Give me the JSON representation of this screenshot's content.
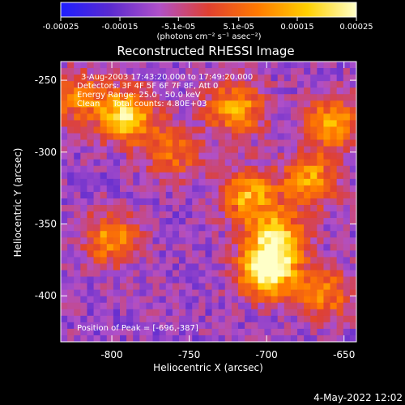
{
  "colorbar": {
    "min": -0.00025,
    "max": 0.00025,
    "ticks": [
      "-0.00025",
      "-0.00015",
      "-5.1e-05",
      "5.1e-05",
      "0.00015",
      "0.00025"
    ],
    "unit_label": "(photons cm⁻² s⁻¹ asec⁻²)",
    "colors": [
      "#1e1eff",
      "#5a2ad0",
      "#b050c8",
      "#e04030",
      "#ff7a00",
      "#ffd000",
      "#ffffc8"
    ]
  },
  "chart_data": {
    "type": "heatmap",
    "title": "Reconstructed RHESSI Image",
    "xlabel": "Heliocentric X (arcsec)",
    "ylabel": "Heliocentric Y (arcsec)",
    "xlim": [
      -833,
      -642
    ],
    "ylim": [
      -432,
      -237
    ],
    "xticks": [
      -800,
      -750,
      -700,
      -650
    ],
    "yticks": [
      -250,
      -300,
      -350,
      -400
    ],
    "info_lines": [
      "3-Aug-2003 17:43:20.000 to 17:49:20.000",
      "Detectors: 3F 4F 5F 6F 7F 8F, Att 0",
      "Energy Range: 25.0 - 50.0 keV",
      "Clean     Total counts: 4.80E+03"
    ],
    "peak_label": "Position of Peak = [-696,-387]",
    "peak_position": [
      -696,
      -387
    ],
    "hotspots": [
      {
        "x": -700,
        "y": -383,
        "strength": 1.0
      },
      {
        "x": -693,
        "y": -360,
        "strength": 0.75
      },
      {
        "x": -712,
        "y": -330,
        "strength": 0.65
      },
      {
        "x": -720,
        "y": -270,
        "strength": 0.65
      },
      {
        "x": -790,
        "y": -275,
        "strength": 0.8
      },
      {
        "x": -822,
        "y": -262,
        "strength": 0.5
      },
      {
        "x": -800,
        "y": -360,
        "strength": 0.55
      },
      {
        "x": -658,
        "y": -280,
        "strength": 0.6
      },
      {
        "x": -672,
        "y": -320,
        "strength": 0.6
      },
      {
        "x": -663,
        "y": -398,
        "strength": 0.5
      },
      {
        "x": -760,
        "y": -300,
        "strength": 0.45
      }
    ]
  },
  "footer_timestamp": "4-May-2022 12:02"
}
